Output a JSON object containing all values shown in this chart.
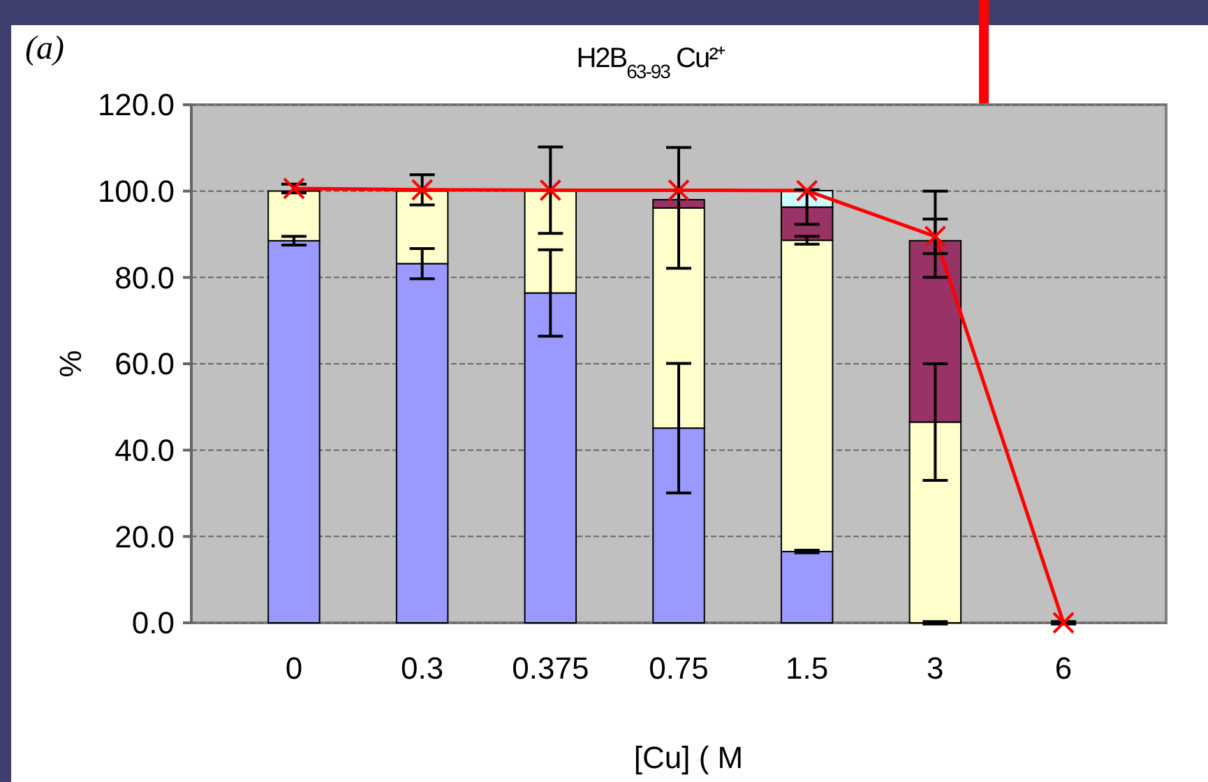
{
  "chart_data": {
    "type": "bar",
    "title": "H2B$_{63-93}$ Cu²⁺",
    "xlabel": "[Cu] ( M",
    "ylabel": "%",
    "annotations": [
      "(a)"
    ],
    "categories": [
      "0",
      "0.3",
      "0.375",
      "0.75",
      "1.5",
      "3",
      "6"
    ],
    "stacked": true,
    "series": [
      {
        "color": "#9999ff",
        "values": [
          88.5,
          83.2,
          76.4,
          45.1,
          16.5,
          0,
          null
        ],
        "errors": [
          1,
          3.5,
          10,
          15,
          0.3,
          0.3,
          null
        ]
      },
      {
        "color": "#ffffcc",
        "values": [
          11.5,
          16.8,
          23.6,
          51,
          72.1,
          46.5,
          null
        ],
        "errors": [
          null,
          null,
          null,
          14,
          0.9,
          13.5,
          null
        ]
      },
      {
        "color": "#993366",
        "values": [
          null,
          null,
          null,
          1.9,
          7.7,
          42,
          null
        ],
        "errors": [
          null,
          null,
          null,
          null,
          4,
          [
            80,
            100
          ],
          null
        ]
      },
      {
        "color": "#ccffff",
        "values": [
          null,
          null,
          null,
          null,
          3.8,
          null,
          null
        ]
      },
      {
        "type": "line",
        "color": "#ff0000",
        "marker": "cross",
        "values": [
          100.6,
          100.3,
          100.2,
          100.2,
          100.1,
          89.5,
          0
        ],
        "errors": [
          1,
          3.5,
          10,
          null,
          null,
          4,
          0.3
        ]
      }
    ],
    "ylim": [
      0,
      120
    ],
    "yticks": [
      {
        "value": 0,
        "label": "0.0"
      },
      {
        "value": 20,
        "label": "20.0"
      },
      {
        "value": 40,
        "label": "40.0"
      },
      {
        "value": 60,
        "label": "60.0"
      },
      {
        "value": 80,
        "label": "80.0"
      },
      {
        "value": 100,
        "label": "100.0"
      },
      {
        "value": 120,
        "label": "120.0"
      }
    ],
    "grid": "y"
  }
}
